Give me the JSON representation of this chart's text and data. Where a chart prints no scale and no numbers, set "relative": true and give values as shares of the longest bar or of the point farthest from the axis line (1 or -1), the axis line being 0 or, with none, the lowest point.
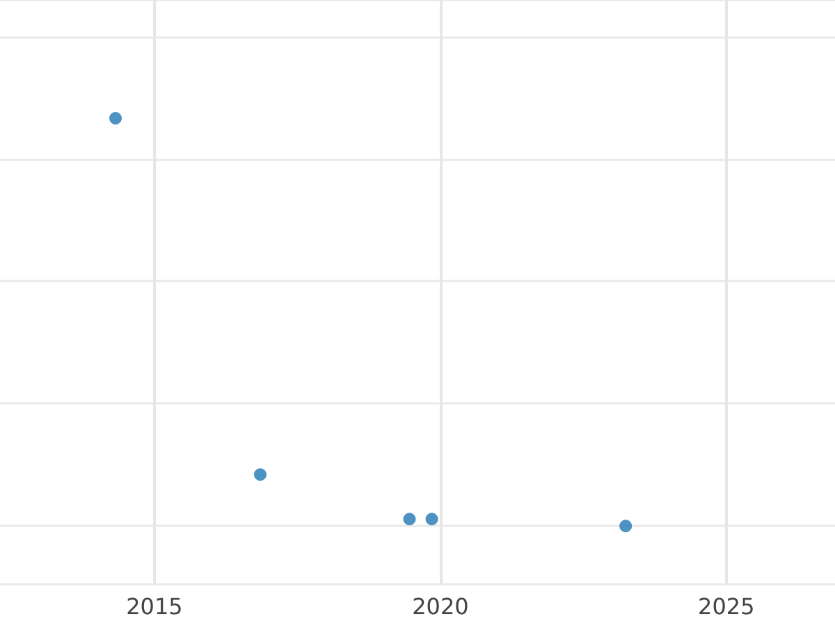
{
  "chart_data": {
    "type": "scatter",
    "relative": true,
    "x": [
      2014.32,
      2016.85,
      2019.46,
      2019.85,
      2023.24
    ],
    "values": [
      1,
      0.126,
      0.017,
      0.017,
      0
    ],
    "color": "#1f77b4",
    "xlim": [
      2012.3,
      2026.9
    ],
    "xticks": [
      2015,
      2020,
      2025
    ],
    "grid": true,
    "marker": "circle"
  }
}
